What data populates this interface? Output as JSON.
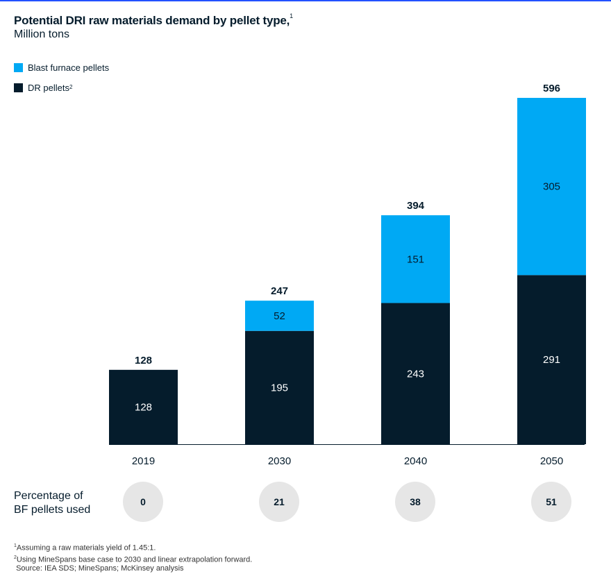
{
  "title": "Potential DRI raw materials demand by pellet type,",
  "title_note": "1",
  "subtitle": "Million tons",
  "legend": [
    {
      "label": "Blast furnace pellets",
      "note": "",
      "color": "#00a9f4"
    },
    {
      "label": "DR pellets",
      "note": "2",
      "color": "#051c2c"
    }
  ],
  "chart_data": {
    "type": "bar",
    "stacked": true,
    "categories": [
      "2019",
      "2030",
      "2040",
      "2050"
    ],
    "series": [
      {
        "name": "DR pellets",
        "values": [
          128,
          195,
          243,
          291
        ],
        "color": "#051c2c"
      },
      {
        "name": "Blast furnace pellets",
        "values": [
          0,
          52,
          151,
          305
        ],
        "color": "#00a9f4"
      }
    ],
    "totals": [
      128,
      247,
      394,
      596
    ],
    "ylim": [
      0,
      596
    ],
    "grid": false,
    "legend_position": "top-left"
  },
  "percentage": {
    "label_line1": "Percentage of",
    "label_line2": "BF pellets used",
    "values": [
      "0",
      "21",
      "38",
      "51"
    ]
  },
  "footnotes": {
    "note1": "Assuming a raw materials yield of 1.45:1.",
    "note2": "Using MineSpans base case to 2030 and linear extrapolation forward.",
    "source": "Source: IEA SDS; MineSpans; McKinsey analysis"
  }
}
